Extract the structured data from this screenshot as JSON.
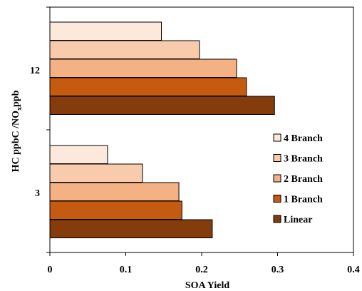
{
  "chart_data": {
    "type": "bar",
    "orientation": "horizontal",
    "title": "",
    "xlabel": "SOA Yield",
    "ylabel_main": "HC ppbC /NO",
    "ylabel_sub": "x",
    "ylabel_tail": "ppb",
    "xlim": [
      0,
      0.4
    ],
    "xticks": [
      "0",
      "0.1",
      "0.2",
      "0.3",
      "0.4"
    ],
    "xtick_values": [
      0,
      0.1,
      0.2,
      0.3,
      0.4
    ],
    "categories": [
      "12",
      "3"
    ],
    "grid": false,
    "legend_position": "right",
    "series": [
      {
        "name": "4 Branch",
        "color": "#fce9dc",
        "values": [
          0.147,
          0.076
        ]
      },
      {
        "name": "3 Branch",
        "color": "#f8cbad",
        "values": [
          0.197,
          0.122
        ]
      },
      {
        "name": "2 Branch",
        "color": "#f4b183",
        "values": [
          0.246,
          0.17
        ]
      },
      {
        "name": "1 Branch",
        "color": "#c55a11",
        "values": [
          0.259,
          0.174
        ]
      },
      {
        "name": "Linear",
        "color": "#843c0c",
        "values": [
          0.296,
          0.214
        ]
      }
    ]
  }
}
